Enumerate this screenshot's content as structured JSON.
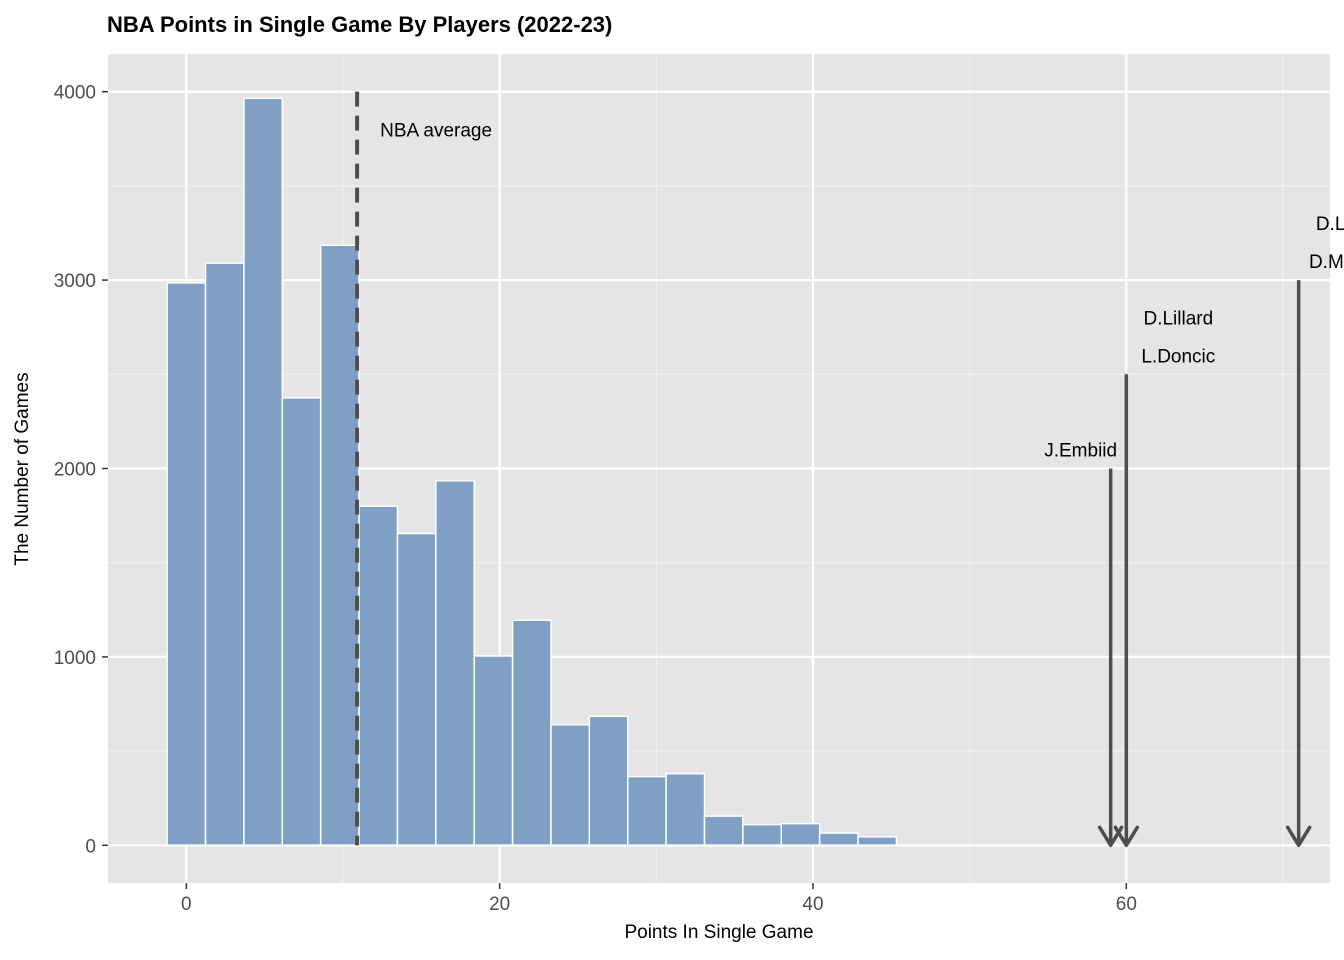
{
  "chart_data": {
    "type": "bar",
    "title": "NBA Points in Single Game By Players (2022-23)",
    "xlabel": "Points In Single Game",
    "ylabel": "The Number of Games",
    "xlim": [
      -5,
      73
    ],
    "ylim": [
      -200,
      4200
    ],
    "x_ticks": [
      0,
      20,
      40,
      60
    ],
    "y_ticks": [
      0,
      1000,
      2000,
      3000,
      4000
    ],
    "grid": true,
    "bin_width": 2.45,
    "bars": [
      {
        "x": 0.0,
        "value": 2985
      },
      {
        "x": 2.45,
        "value": 3090
      },
      {
        "x": 4.9,
        "value": 3965
      },
      {
        "x": 7.35,
        "value": 2375
      },
      {
        "x": 9.8,
        "value": 3185
      },
      {
        "x": 12.25,
        "value": 1800
      },
      {
        "x": 14.7,
        "value": 1655
      },
      {
        "x": 17.15,
        "value": 1935
      },
      {
        "x": 19.6,
        "value": 1005
      },
      {
        "x": 22.05,
        "value": 1195
      },
      {
        "x": 24.5,
        "value": 640
      },
      {
        "x": 26.95,
        "value": 685
      },
      {
        "x": 29.4,
        "value": 365
      },
      {
        "x": 31.85,
        "value": 380
      },
      {
        "x": 34.3,
        "value": 155
      },
      {
        "x": 36.75,
        "value": 110
      },
      {
        "x": 39.2,
        "value": 115
      },
      {
        "x": 41.65,
        "value": 65
      },
      {
        "x": 44.1,
        "value": 45
      }
    ],
    "bar_color": "#7f9fc4",
    "average_line": {
      "x": 10.9,
      "label": "NBA average"
    },
    "annotations": [
      {
        "x": 59.0,
        "y_top": 2000,
        "labels": [
          "J.Embiid"
        ]
      },
      {
        "x": 60.0,
        "y_top": 2500,
        "labels": [
          "D.Lillard",
          "L.Doncic"
        ]
      },
      {
        "x": 71.0,
        "y_top": 3000,
        "labels": [
          "D.Lillard",
          "D.Mitchell"
        ]
      }
    ]
  }
}
